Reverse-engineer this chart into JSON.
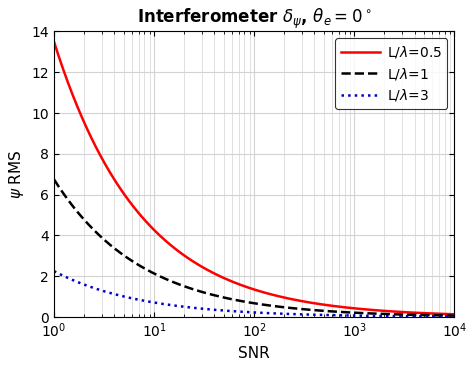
{
  "title": "Interferometer $\\delta_{\\psi}$, $\\theta_e = 0^\\circ$",
  "xlabel": "SNR",
  "ylabel": "$\\psi$ RMS",
  "xlim_log": [
    0,
    4
  ],
  "ylim": [
    0,
    14
  ],
  "yticks": [
    0,
    2,
    4,
    6,
    8,
    10,
    12,
    14
  ],
  "lines": [
    {
      "L_over_lambda": 0.5,
      "color": "#ff0000",
      "linestyle": "-",
      "linewidth": 1.8,
      "label": "L/$\\lambda$=0.5"
    },
    {
      "L_over_lambda": 1.0,
      "color": "#000000",
      "linestyle": "--",
      "linewidth": 1.8,
      "label": "L/$\\lambda$=1"
    },
    {
      "L_over_lambda": 3.0,
      "color": "#0000cc",
      "linestyle": ":",
      "linewidth": 1.8,
      "label": "L/$\\lambda$=3"
    }
  ],
  "K": 6.75,
  "n_points": 2000,
  "background_color": "#ffffff",
  "grid_color": "#d3d3d3",
  "title_fontsize": 12,
  "label_fontsize": 11,
  "tick_fontsize": 10,
  "legend_fontsize": 10
}
